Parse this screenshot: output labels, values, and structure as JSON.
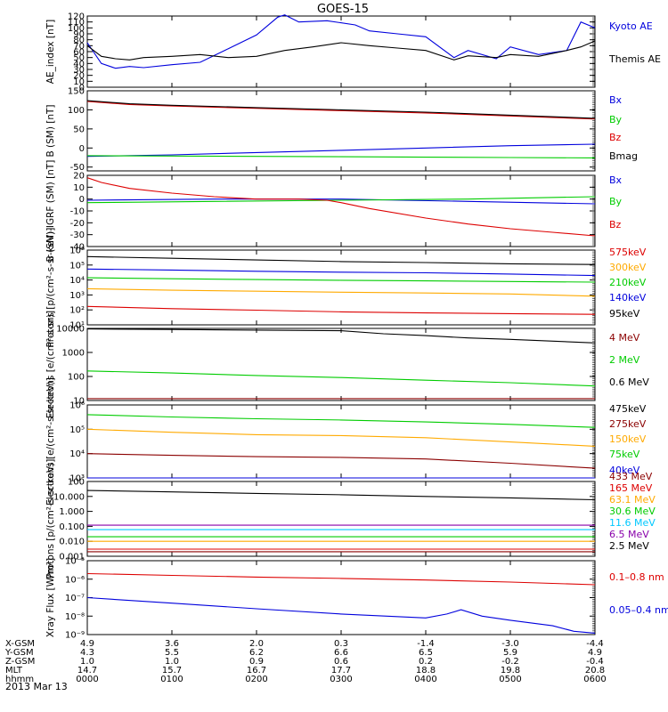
{
  "title": "GOES-15",
  "colors": {
    "black": "#000000",
    "blue": "#0000dd",
    "green": "#00cc00",
    "red": "#dd0000",
    "orange": "#ffaa00",
    "cyan": "#00c8ff",
    "darkred": "#8b0000",
    "purple": "#8800aa"
  },
  "chart_data": [
    {
      "type": "line",
      "ylabel": "AE_index [nT]",
      "yscale": "linear",
      "ylim": [
        0,
        120
      ],
      "yticks": [
        "0",
        "10",
        "20",
        "30",
        "40",
        "50",
        "60",
        "70",
        "80",
        "90",
        "100",
        "110",
        "120"
      ],
      "series": [
        {
          "name": "Kyoto AE",
          "color": "blue",
          "x": [
            0,
            10,
            20,
            30,
            40,
            60,
            80,
            100,
            120,
            135,
            140,
            150,
            170,
            190,
            200,
            220,
            240,
            260,
            270,
            290,
            300,
            320,
            340,
            350,
            360
          ],
          "y": [
            75,
            40,
            32,
            35,
            33,
            38,
            42,
            65,
            88,
            118,
            122,
            110,
            112,
            105,
            95,
            90,
            85,
            50,
            62,
            48,
            68,
            55,
            62,
            110,
            100
          ]
        },
        {
          "name": "Themis AE",
          "color": "black",
          "x": [
            0,
            10,
            20,
            30,
            40,
            60,
            80,
            100,
            120,
            140,
            160,
            180,
            200,
            220,
            240,
            260,
            270,
            290,
            300,
            320,
            340,
            350,
            360
          ],
          "y": [
            70,
            52,
            48,
            46,
            50,
            52,
            55,
            50,
            52,
            62,
            68,
            75,
            70,
            66,
            62,
            46,
            53,
            50,
            55,
            52,
            62,
            68,
            78
          ]
        }
      ]
    },
    {
      "type": "line",
      "ylabel": "B (SM) [nT]",
      "yscale": "linear",
      "ylim": [
        -60,
        150
      ],
      "yticks": [
        "-50",
        "0",
        "50",
        "100",
        "150"
      ],
      "series": [
        {
          "name": "Bx",
          "color": "blue",
          "x": [
            0,
            60,
            120,
            180,
            240,
            300,
            360
          ],
          "y": [
            -22,
            -18,
            -12,
            -6,
            0,
            6,
            10
          ]
        },
        {
          "name": "By",
          "color": "green",
          "x": [
            0,
            60,
            120,
            180,
            240,
            300,
            360
          ],
          "y": [
            -20,
            -21,
            -22,
            -23,
            -24,
            -25,
            -26
          ]
        },
        {
          "name": "Bz",
          "color": "red",
          "x": [
            0,
            30,
            60,
            120,
            180,
            240,
            300,
            360
          ],
          "y": [
            122,
            114,
            110,
            104,
            98,
            92,
            84,
            76
          ]
        },
        {
          "name": "Bmag",
          "color": "black",
          "x": [
            0,
            30,
            60,
            120,
            180,
            240,
            300,
            360
          ],
          "y": [
            124,
            116,
            112,
            106,
            100,
            94,
            86,
            78
          ]
        }
      ]
    },
    {
      "type": "line",
      "ylabel": "B (SM)-IGRF (SM) [nT]",
      "yscale": "linear",
      "ylim": [
        -40,
        20
      ],
      "yticks": [
        "-40",
        "-30",
        "-20",
        "-10",
        "0",
        "10",
        "20"
      ],
      "series": [
        {
          "name": "Bx",
          "color": "blue",
          "x": [
            0,
            90,
            180,
            270,
            360
          ],
          "y": [
            -1,
            0,
            0,
            -2,
            -4
          ]
        },
        {
          "name": "By",
          "color": "green",
          "x": [
            0,
            90,
            180,
            270,
            360
          ],
          "y": [
            -3,
            -2,
            -1,
            0,
            2
          ]
        },
        {
          "name": "Bz",
          "color": "red",
          "x": [
            0,
            10,
            30,
            60,
            90,
            120,
            150,
            170,
            180,
            200,
            240,
            270,
            300,
            330,
            360
          ],
          "y": [
            18,
            14,
            9,
            5,
            2,
            0,
            0,
            -1,
            -3,
            -8,
            -16,
            -21,
            -25,
            -28,
            -31
          ]
        }
      ]
    },
    {
      "type": "line",
      "ylabel": "Protons [p/(cm²-s-sr-keV)]",
      "yscale": "log",
      "ylim": [
        1,
        1000000
      ],
      "yticks": [
        "10¹",
        "10²",
        "10³",
        "10⁴",
        "10⁵",
        "10⁶"
      ],
      "series": [
        {
          "name": "575keV",
          "color": "red",
          "x": [
            0,
            60,
            120,
            180,
            240,
            300,
            360
          ],
          "y": [
            30,
            20,
            15,
            11,
            9,
            8,
            7
          ]
        },
        {
          "name": "300keV",
          "color": "orange",
          "x": [
            0,
            60,
            120,
            180,
            240,
            300,
            360
          ],
          "y": [
            800,
            600,
            500,
            420,
            360,
            300,
            200
          ]
        },
        {
          "name": "210keV",
          "color": "green",
          "x": [
            0,
            60,
            120,
            180,
            240,
            300,
            360
          ],
          "y": [
            6000,
            5000,
            4300,
            3800,
            3400,
            3000,
            2700
          ]
        },
        {
          "name": "140keV",
          "color": "blue",
          "x": [
            0,
            60,
            120,
            180,
            240,
            300,
            360
          ],
          "y": [
            30000,
            25000,
            20000,
            17000,
            15000,
            12000,
            9000
          ]
        },
        {
          "name": "95keV",
          "color": "black",
          "x": [
            0,
            60,
            120,
            180,
            240,
            300,
            360
          ],
          "y": [
            300000,
            220000,
            160000,
            120000,
            100000,
            80000,
            70000
          ]
        }
      ]
    },
    {
      "type": "line",
      "ylabel": "Electrons [e/(cm²-s-sr)]",
      "yscale": "log",
      "ylim": [
        10,
        10000
      ],
      "yticks": [
        "10",
        "100",
        "1000",
        "10000"
      ],
      "series": [
        {
          "name": "4 MeV",
          "color": "darkred",
          "x": [
            0,
            60,
            120,
            180,
            240,
            300,
            360
          ],
          "y": [
            12,
            12,
            12,
            12,
            12,
            12,
            12
          ]
        },
        {
          "name": "2 MeV",
          "color": "green",
          "x": [
            0,
            60,
            120,
            180,
            240,
            300,
            360
          ],
          "y": [
            170,
            140,
            110,
            90,
            70,
            55,
            40
          ]
        },
        {
          "name": "0.6 MeV",
          "color": "black",
          "x": [
            0,
            60,
            120,
            180,
            210,
            240,
            270,
            300,
            360
          ],
          "y": [
            9500,
            9000,
            8500,
            8000,
            6000,
            5000,
            4000,
            3500,
            2500
          ]
        }
      ]
    },
    {
      "type": "line",
      "ylabel": "Electrons [e/(cm²-s-sr-keV)]",
      "yscale": "log",
      "ylim": [
        1000,
        1000000
      ],
      "yticks": [
        "10³",
        "10⁴",
        "10⁵",
        "10⁶"
      ],
      "series": [
        {
          "name": "475keV",
          "color": "black",
          "x": [
            0,
            360
          ],
          "y": [
            1000,
            1000
          ]
        },
        {
          "name": "275keV",
          "color": "darkred",
          "x": [
            0,
            60,
            120,
            180,
            240,
            300,
            360
          ],
          "y": [
            10000,
            8500,
            7500,
            7000,
            6000,
            4000,
            2500
          ]
        },
        {
          "name": "150keV",
          "color": "orange",
          "x": [
            0,
            60,
            120,
            180,
            240,
            300,
            360
          ],
          "y": [
            100000,
            75000,
            60000,
            55000,
            45000,
            30000,
            20000
          ]
        },
        {
          "name": "75keV",
          "color": "green",
          "x": [
            0,
            60,
            120,
            180,
            240,
            300,
            360
          ],
          "y": [
            400000,
            320000,
            270000,
            240000,
            200000,
            160000,
            120000
          ]
        },
        {
          "name": "40keV",
          "color": "blue",
          "x": [
            0,
            360
          ],
          "y": [
            1000,
            1000
          ]
        }
      ]
    },
    {
      "type": "line",
      "ylabel": "Protons [p/(cm²-s-sr-keV)]",
      "yscale": "log",
      "ylim": [
        0.001,
        100
      ],
      "yticks": [
        "0.001",
        "0.010",
        "0.100",
        "1.000",
        "10.000",
        "100"
      ],
      "series": [
        {
          "name": "433 MeV",
          "color": "darkred",
          "x": [
            0,
            360
          ],
          "y": [
            0.002,
            0.002
          ]
        },
        {
          "name": "165 MeV",
          "color": "red",
          "x": [
            0,
            360
          ],
          "y": [
            0.003,
            0.003
          ]
        },
        {
          "name": "63.1 MeV",
          "color": "orange",
          "x": [
            0,
            360
          ],
          "y": [
            0.01,
            0.01
          ]
        },
        {
          "name": "30.6 MeV",
          "color": "green",
          "x": [
            0,
            360
          ],
          "y": [
            0.02,
            0.02
          ]
        },
        {
          "name": "11.6 MeV",
          "color": "cyan",
          "x": [
            0,
            360
          ],
          "y": [
            0.06,
            0.06
          ]
        },
        {
          "name": "6.5 MeV",
          "color": "purple",
          "x": [
            0,
            360
          ],
          "y": [
            0.12,
            0.12
          ]
        },
        {
          "name": "2.5 MeV",
          "color": "black",
          "x": [
            0,
            60,
            120,
            180,
            240,
            300,
            360
          ],
          "y": [
            25,
            20,
            16,
            13,
            10,
            8,
            6
          ]
        }
      ]
    },
    {
      "type": "line",
      "ylabel": "Xray Flux [W/m²]",
      "yscale": "log",
      "ylim": [
        1e-09,
        1e-05
      ],
      "yticks": [
        "10⁻⁹",
        "10⁻⁸",
        "10⁻⁷",
        "10⁻⁶",
        "10⁻⁵"
      ],
      "series": [
        {
          "name": "0.1–0.8 nm",
          "color": "red",
          "x": [
            0,
            60,
            120,
            180,
            240,
            300,
            360
          ],
          "y": [
            2e-06,
            1.6e-06,
            1.3e-06,
            1.1e-06,
            9e-07,
            7e-07,
            5e-07
          ]
        },
        {
          "name": "0.05–0.4 nm",
          "color": "blue",
          "x": [
            0,
            60,
            120,
            180,
            240,
            255,
            265,
            280,
            300,
            330,
            345,
            360
          ],
          "y": [
            1e-07,
            5e-08,
            2.5e-08,
            1.3e-08,
            8e-09,
            1.3e-08,
            2.2e-08,
            1e-08,
            6e-09,
            3e-09,
            1.5e-09,
            1.2e-09
          ]
        }
      ]
    }
  ],
  "axis_rows": [
    {
      "label": "X-GSM",
      "values": [
        "4.9",
        "3.6",
        "2.0",
        "0.3",
        "-1.4",
        "-3.0",
        "-4.4"
      ]
    },
    {
      "label": "Y-GSM",
      "values": [
        "4.3",
        "5.5",
        "6.2",
        "6.6",
        "6.5",
        "5.9",
        "4.9"
      ]
    },
    {
      "label": "Z-GSM",
      "values": [
        "1.0",
        "1.0",
        "0.9",
        "0.6",
        "0.2",
        "-0.2",
        "-0.4"
      ]
    },
    {
      "label": "MLT",
      "values": [
        "14.7",
        "15.7",
        "16.7",
        "17.7",
        "18.8",
        "19.8",
        "20.8"
      ]
    },
    {
      "label": "hhmm",
      "values": [
        "0000",
        "0100",
        "0200",
        "0300",
        "0400",
        "0500",
        "0600"
      ]
    }
  ],
  "date": "2013 Mar 13"
}
